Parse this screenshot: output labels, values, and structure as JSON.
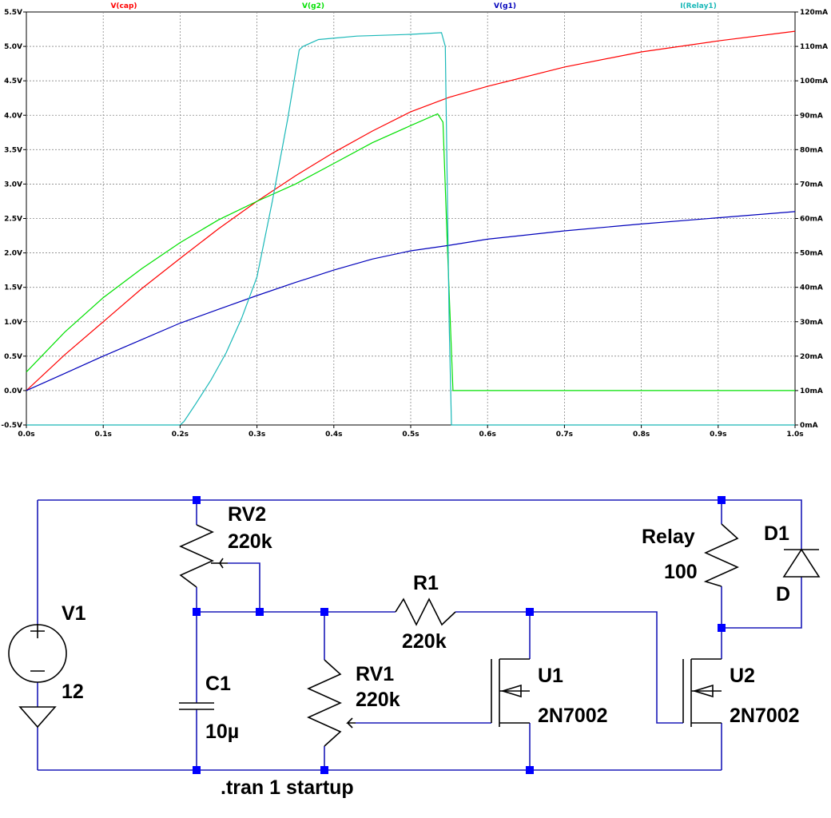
{
  "chart_data": {
    "type": "line",
    "x_tick_labels": [
      "0.0s",
      "0.1s",
      "0.2s",
      "0.3s",
      "0.4s",
      "0.5s",
      "0.6s",
      "0.7s",
      "0.8s",
      "0.9s",
      "1.0s"
    ],
    "y_left_tick_labels": [
      "-0.5V",
      "0.0V",
      "0.5V",
      "1.0V",
      "1.5V",
      "2.0V",
      "2.5V",
      "3.0V",
      "3.5V",
      "4.0V",
      "4.5V",
      "5.0V",
      "5.5V"
    ],
    "y_right_tick_labels": [
      "0mA",
      "10mA",
      "20mA",
      "30mA",
      "40mA",
      "50mA",
      "60mA",
      "70mA",
      "80mA",
      "90mA",
      "100mA",
      "110mA",
      "120mA"
    ],
    "xlim": [
      0,
      1.0
    ],
    "ylim_left": [
      -0.5,
      5.5
    ],
    "ylim_right": [
      0,
      120
    ],
    "grid": true,
    "series": [
      {
        "name": "V(cap)",
        "axis": "left",
        "color": "#ff0000",
        "x": [
          0,
          0.05,
          0.1,
          0.15,
          0.2,
          0.25,
          0.3,
          0.35,
          0.4,
          0.45,
          0.5,
          0.55,
          0.6,
          0.7,
          0.8,
          0.9,
          1.0
        ],
        "y": [
          0,
          0.52,
          1.0,
          1.48,
          1.92,
          2.35,
          2.75,
          3.12,
          3.46,
          3.77,
          4.05,
          4.26,
          4.42,
          4.7,
          4.92,
          5.08,
          5.22
        ]
      },
      {
        "name": "V(g2)",
        "axis": "left",
        "color": "#00e000",
        "x": [
          0,
          0.05,
          0.1,
          0.15,
          0.2,
          0.25,
          0.3,
          0.35,
          0.4,
          0.45,
          0.5,
          0.535,
          0.542,
          0.548,
          0.555,
          1.0
        ],
        "y": [
          0.27,
          0.85,
          1.35,
          1.77,
          2.15,
          2.48,
          2.75,
          3.0,
          3.3,
          3.6,
          3.85,
          4.02,
          3.9,
          2.0,
          0.0,
          0.0
        ]
      },
      {
        "name": "V(g1)",
        "axis": "left",
        "color": "#0000bb",
        "x": [
          0,
          0.05,
          0.1,
          0.15,
          0.2,
          0.25,
          0.3,
          0.35,
          0.4,
          0.45,
          0.5,
          0.55,
          0.6,
          0.7,
          0.8,
          0.9,
          1.0
        ],
        "y": [
          0,
          0.25,
          0.5,
          0.74,
          0.98,
          1.18,
          1.38,
          1.57,
          1.75,
          1.91,
          2.03,
          2.11,
          2.2,
          2.32,
          2.42,
          2.51,
          2.6
        ]
      },
      {
        "name": "I(Relay1)",
        "axis": "right",
        "color": "#1ab8b8",
        "x": [
          0,
          0.2,
          0.205,
          0.22,
          0.24,
          0.26,
          0.28,
          0.3,
          0.32,
          0.34,
          0.355,
          0.36,
          0.38,
          0.43,
          0.5,
          0.54,
          0.545,
          0.55,
          0.553,
          1.0
        ],
        "y": [
          0,
          0,
          1,
          6,
          13,
          21,
          31,
          43,
          65,
          89,
          109,
          110,
          112,
          113,
          113.5,
          114,
          110,
          30,
          0,
          0
        ]
      }
    ]
  },
  "schematic": {
    "labels": {
      "rv2_name": "RV2",
      "rv2_value": "220k",
      "relay_name": "Relay",
      "relay_value": "100",
      "d1_name": "D1",
      "d1_value": "D",
      "v1_name": "V1",
      "v1_value": "12",
      "r1_name": "R1",
      "r1_value": "220k",
      "c1_name": "C1",
      "c1_value": "10µ",
      "rv1_name": "RV1",
      "rv1_value": "220k",
      "u1_name": "U1",
      "u1_value": "2N7002",
      "u2_name": "U2",
      "u2_value": "2N7002",
      "directive": ".tran 1 startup"
    },
    "colors": {
      "wire": "#1a1ab8",
      "node": "#0000ff",
      "component": "#000000"
    }
  }
}
